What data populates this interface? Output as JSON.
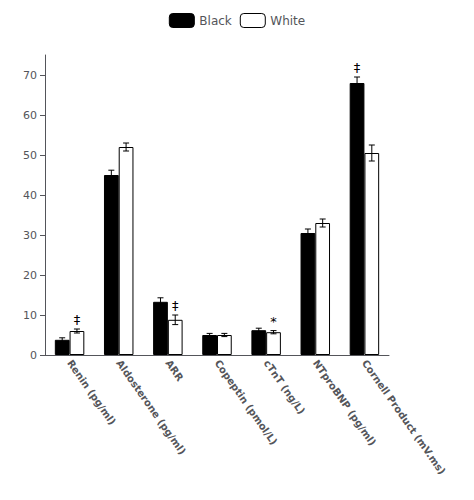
{
  "chart_data": {
    "type": "bar",
    "categories": [
      "Renin (pg/ml)",
      "Aldosterone (pg/ml)",
      "ARR",
      "Copeptin (pmol/L)",
      "cTnT (ng/L)",
      "NTproBNP (pg/ml)",
      "Cornell Product (mV.ms)"
    ],
    "series": [
      {
        "name": "Black",
        "color": "#000000",
        "values": [
          3.8,
          45.0,
          13.3,
          5.0,
          6.2,
          30.5,
          68.0
        ],
        "errors": [
          0.5,
          1.2,
          1.0,
          0.4,
          0.5,
          1.0,
          1.5
        ]
      },
      {
        "name": "White",
        "color": "#ffffff",
        "values": [
          6.0,
          52.0,
          8.8,
          5.0,
          5.7,
          33.0,
          50.5
        ],
        "errors": [
          0.5,
          1.0,
          1.2,
          0.4,
          0.4,
          1.0,
          2.0
        ]
      }
    ],
    "annotations": [
      {
        "category": "Renin (pg/ml)",
        "series": "White",
        "text": "‡"
      },
      {
        "category": "ARR",
        "series": "White",
        "text": "‡"
      },
      {
        "category": "cTnT (ng/L)",
        "series": "White",
        "text": "*"
      },
      {
        "category": "Cornell Product (mV.ms)",
        "series": "Black",
        "text": "‡"
      }
    ],
    "ylim": [
      0,
      75
    ],
    "yticks": [
      0,
      10,
      20,
      30,
      40,
      50,
      60,
      70
    ],
    "grid": false,
    "legend": "top"
  }
}
